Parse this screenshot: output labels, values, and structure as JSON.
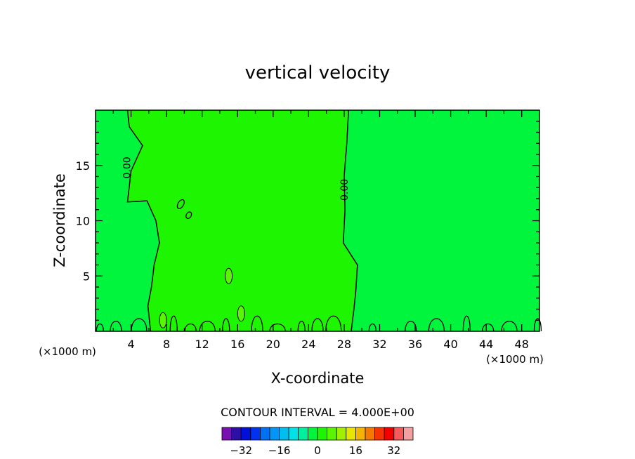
{
  "chart_data": {
    "type": "heatmap",
    "title": "vertical velocity",
    "xlabel": "X-coordinate",
    "ylabel": "Z-coordinate",
    "x_unit": "(×1000 m)",
    "y_unit": "(×1000 m)",
    "xlim": [
      0,
      50
    ],
    "ylim": [
      0,
      20
    ],
    "x_ticks": [
      4,
      8,
      12,
      16,
      20,
      24,
      28,
      32,
      36,
      40,
      44,
      48
    ],
    "y_ticks": [
      5,
      10,
      15
    ],
    "contour_interval_label": "CONTOUR INTERVAL = 4.000E+00",
    "contour_label": "0.00",
    "field": {
      "background_value": 0,
      "background_color": "#00f53c",
      "updraft_band": {
        "x_range": [
          4,
          29
        ],
        "value_range": [
          0,
          4
        ],
        "color": "#1ef500",
        "left_boundary": [
          [
            3.6,
            20
          ],
          [
            3.8,
            18.5
          ],
          [
            5.3,
            16.8
          ],
          [
            4.0,
            14.5
          ],
          [
            3.6,
            11.7
          ],
          [
            5.8,
            11.8
          ],
          [
            6.8,
            10
          ],
          [
            7.2,
            8
          ],
          [
            6.6,
            6
          ],
          [
            6.3,
            4
          ],
          [
            5.9,
            2.3
          ],
          [
            6.2,
            0
          ]
        ],
        "right_boundary": [
          [
            28.5,
            20
          ],
          [
            28.3,
            17
          ],
          [
            28.0,
            14
          ],
          [
            28.1,
            11
          ],
          [
            27.9,
            8
          ],
          [
            29.5,
            6
          ],
          [
            29.3,
            3.5
          ],
          [
            29.1,
            2
          ],
          [
            28.8,
            0
          ]
        ]
      },
      "positive_patches": [
        {
          "x": 7.6,
          "z": 1.0,
          "value": 6
        },
        {
          "x": 16.4,
          "z": 1.6,
          "value": 6
        },
        {
          "x": 15.0,
          "z": 5.0,
          "value": 6
        }
      ]
    },
    "colorbar": {
      "levels": [
        -36,
        -32,
        -28,
        -24,
        -20,
        -16,
        -12,
        -8,
        -4,
        0,
        4,
        8,
        12,
        16,
        20,
        24,
        28,
        32,
        36
      ],
      "colors": [
        "#7a0fb2",
        "#2d0fa8",
        "#0010d8",
        "#0032f0",
        "#0070f5",
        "#0096f5",
        "#00bef0",
        "#00e2e6",
        "#00f0a0",
        "#00f53c",
        "#1ef500",
        "#5af500",
        "#a0f000",
        "#e6e600",
        "#f5b400",
        "#f57800",
        "#f53200",
        "#f50000",
        "#f55a5a",
        "#f5a0a0"
      ],
      "tick_labels": [
        "−32",
        "−16",
        "0",
        "16",
        "32"
      ],
      "tick_values": [
        -32,
        -16,
        0,
        16,
        32
      ]
    }
  }
}
